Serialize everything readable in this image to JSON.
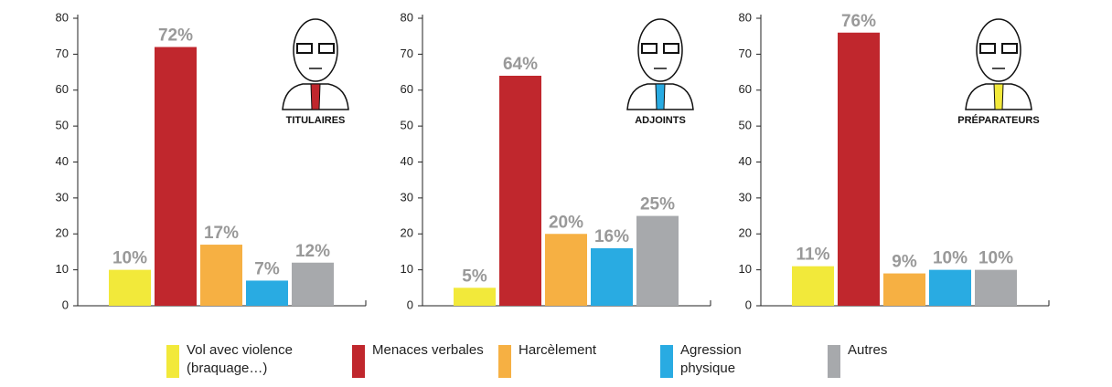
{
  "chart_data": [
    {
      "type": "bar",
      "title": "TITULAIRES",
      "values": [
        10,
        72,
        17,
        7,
        12
      ],
      "value_labels": [
        "10%",
        "72%",
        "17%",
        "7%",
        "12%"
      ],
      "ylim": [
        0,
        80
      ],
      "yticks": [
        0,
        10,
        20,
        30,
        40,
        50,
        60,
        70,
        80
      ]
    },
    {
      "type": "bar",
      "title": "ADJOINTS",
      "values": [
        5,
        64,
        20,
        16,
        25
      ],
      "value_labels": [
        "5%",
        "64%",
        "20%",
        "16%",
        "25%"
      ],
      "ylim": [
        0,
        80
      ],
      "yticks": [
        0,
        10,
        20,
        30,
        40,
        50,
        60,
        70,
        80
      ]
    },
    {
      "type": "bar",
      "title": "PRÉPARATEURS",
      "values": [
        11,
        76,
        9,
        10,
        10
      ],
      "value_labels": [
        "11%",
        "76%",
        "9%",
        "10%",
        "10%"
      ],
      "ylim": [
        0,
        80
      ],
      "yticks": [
        0,
        10,
        20,
        30,
        40,
        50,
        60,
        70,
        80
      ]
    }
  ],
  "legend": {
    "names": [
      "Vol avec violence (braquage…)",
      "Menaces verbales",
      "Harcèlement",
      "Agression physique",
      "Autres"
    ],
    "colors": [
      "#f2e93a",
      "#c0272d",
      "#f6b043",
      "#29abe2",
      "#a7a9ac"
    ]
  }
}
